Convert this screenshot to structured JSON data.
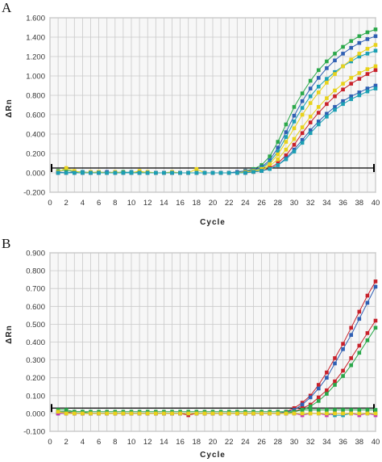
{
  "panels": [
    {
      "letter": "A",
      "chart_data": {
        "type": "line",
        "xlabel": "Cycle",
        "ylabel": "ΔRn",
        "xlim": [
          0,
          40
        ],
        "ylim": [
          -0.2,
          1.6
        ],
        "x_ticks": [
          "0",
          "2",
          "4",
          "6",
          "8",
          "10",
          "12",
          "14",
          "16",
          "18",
          "20",
          "22",
          "24",
          "26",
          "28",
          "30",
          "32",
          "34",
          "36",
          "38",
          "40"
        ],
        "y_ticks": [
          "-0.200",
          "0.000",
          "0.200",
          "0.400",
          "0.600",
          "0.800",
          "1.000",
          "1.200",
          "1.400",
          "1.600"
        ],
        "threshold": 0.05,
        "colors": {
          "green": "#2aa84a",
          "blue": "#2f5fb3",
          "teal": "#1b9fb3",
          "yellow": "#e8d21a",
          "red": "#c8202a",
          "grid": "#c9c9c9",
          "background": "#f7f7f7",
          "threshold": "#000000"
        },
        "x": [
          1,
          2,
          3,
          4,
          5,
          6,
          7,
          8,
          9,
          10,
          11,
          12,
          13,
          14,
          15,
          16,
          17,
          18,
          19,
          20,
          21,
          22,
          23,
          24,
          25,
          26,
          27,
          28,
          29,
          30,
          31,
          32,
          33,
          34,
          35,
          36,
          37,
          38,
          39,
          40
        ],
        "series": [
          {
            "color": "green",
            "values": [
              0.02,
              0.03,
              0.01,
              0.01,
              0.0,
              0.01,
              0.0,
              0.0,
              0.01,
              0.0,
              0.01,
              0.0,
              0.0,
              0.0,
              0.0,
              0.0,
              0.0,
              0.0,
              0.0,
              0.0,
              0.0,
              0.0,
              0.01,
              0.02,
              0.04,
              0.08,
              0.17,
              0.32,
              0.5,
              0.68,
              0.82,
              0.95,
              1.06,
              1.15,
              1.23,
              1.3,
              1.36,
              1.41,
              1.45,
              1.48
            ]
          },
          {
            "color": "blue",
            "values": [
              0.01,
              0.0,
              0.01,
              0.0,
              0.0,
              0.0,
              0.01,
              0.0,
              0.0,
              0.0,
              0.0,
              0.0,
              0.0,
              0.0,
              0.0,
              0.0,
              0.0,
              0.0,
              0.0,
              0.0,
              0.0,
              0.0,
              0.01,
              0.02,
              0.03,
              0.06,
              0.13,
              0.26,
              0.42,
              0.59,
              0.74,
              0.87,
              0.98,
              1.08,
              1.16,
              1.23,
              1.29,
              1.34,
              1.38,
              1.41
            ]
          },
          {
            "color": "teal",
            "values": [
              0.0,
              0.0,
              0.0,
              0.01,
              0.0,
              0.0,
              0.0,
              0.0,
              0.0,
              0.01,
              0.0,
              0.0,
              0.0,
              0.0,
              0.0,
              0.0,
              0.0,
              0.0,
              0.0,
              0.0,
              0.0,
              0.0,
              0.0,
              0.01,
              0.02,
              0.05,
              0.11,
              0.22,
              0.37,
              0.53,
              0.67,
              0.79,
              0.89,
              0.97,
              1.04,
              1.1,
              1.15,
              1.2,
              1.23,
              1.26
            ]
          },
          {
            "color": "yellow",
            "values": [
              0.01,
              0.05,
              0.02,
              0.0,
              0.0,
              0.01,
              0.0,
              0.01,
              0.0,
              0.0,
              0.02,
              0.0,
              0.0,
              0.0,
              0.01,
              0.0,
              0.0,
              0.04,
              0.0,
              0.0,
              0.0,
              0.0,
              0.0,
              0.01,
              0.02,
              0.04,
              0.09,
              0.19,
              0.32,
              0.46,
              0.6,
              0.72,
              0.83,
              0.93,
              1.02,
              1.1,
              1.17,
              1.23,
              1.28,
              1.32
            ]
          },
          {
            "color": "yellow",
            "values": [
              0.0,
              0.0,
              0.0,
              0.0,
              0.01,
              0.0,
              0.0,
              0.0,
              0.0,
              0.0,
              0.0,
              0.01,
              0.0,
              0.0,
              0.0,
              0.0,
              0.0,
              0.0,
              0.0,
              0.0,
              0.0,
              0.0,
              0.0,
              0.01,
              0.01,
              0.03,
              0.07,
              0.14,
              0.24,
              0.35,
              0.47,
              0.58,
              0.68,
              0.77,
              0.85,
              0.92,
              0.98,
              1.03,
              1.07,
              1.1
            ]
          },
          {
            "color": "red",
            "values": [
              0.0,
              0.0,
              0.0,
              0.0,
              0.0,
              0.0,
              0.0,
              0.0,
              0.0,
              0.0,
              0.0,
              0.0,
              0.0,
              0.0,
              0.0,
              0.0,
              0.0,
              0.0,
              0.0,
              0.0,
              0.0,
              0.0,
              0.0,
              0.0,
              0.01,
              0.02,
              0.05,
              0.1,
              0.18,
              0.29,
              0.41,
              0.52,
              0.62,
              0.71,
              0.79,
              0.86,
              0.92,
              0.97,
              1.02,
              1.06
            ]
          },
          {
            "color": "blue",
            "values": [
              0.0,
              0.0,
              0.0,
              0.0,
              0.0,
              0.0,
              0.0,
              0.0,
              0.0,
              0.0,
              0.0,
              0.0,
              0.0,
              0.0,
              0.0,
              0.0,
              0.0,
              0.0,
              0.0,
              0.0,
              0.0,
              0.0,
              0.0,
              0.0,
              0.01,
              0.02,
              0.04,
              0.08,
              0.15,
              0.24,
              0.34,
              0.44,
              0.53,
              0.61,
              0.68,
              0.74,
              0.79,
              0.83,
              0.87,
              0.9
            ]
          },
          {
            "color": "teal",
            "values": [
              0.0,
              0.0,
              0.0,
              0.0,
              0.0,
              0.0,
              0.0,
              0.0,
              0.0,
              0.0,
              0.0,
              0.0,
              0.0,
              0.0,
              0.0,
              0.0,
              0.0,
              0.0,
              0.0,
              0.0,
              0.0,
              0.0,
              0.0,
              0.0,
              0.01,
              0.02,
              0.04,
              0.08,
              0.14,
              0.22,
              0.31,
              0.41,
              0.5,
              0.58,
              0.65,
              0.71,
              0.76,
              0.8,
              0.84,
              0.87
            ]
          }
        ]
      }
    },
    {
      "letter": "B",
      "chart_data": {
        "type": "line",
        "xlabel": "Cycle",
        "ylabel": "ΔRn",
        "xlim": [
          0,
          40
        ],
        "ylim": [
          -0.1,
          0.9
        ],
        "x_ticks": [
          "0",
          "2",
          "4",
          "6",
          "8",
          "10",
          "12",
          "14",
          "16",
          "18",
          "20",
          "22",
          "24",
          "26",
          "28",
          "30",
          "32",
          "34",
          "36",
          "38",
          "40"
        ],
        "y_ticks": [
          "-0.100",
          "0.000",
          "0.100",
          "0.200",
          "0.300",
          "0.400",
          "0.500",
          "0.600",
          "0.700",
          "0.800",
          "0.900"
        ],
        "threshold": 0.03,
        "colors": {
          "green": "#2aa84a",
          "blue": "#2f5fb3",
          "teal": "#1b9fb3",
          "yellow": "#e8d21a",
          "red": "#c8202a",
          "magenta": "#c63ab0",
          "grid": "#c9c9c9",
          "background": "#f7f7f7",
          "threshold": "#000000"
        },
        "x": [
          1,
          2,
          3,
          4,
          5,
          6,
          7,
          8,
          9,
          10,
          11,
          12,
          13,
          14,
          15,
          16,
          17,
          18,
          19,
          20,
          21,
          22,
          23,
          24,
          25,
          26,
          27,
          28,
          29,
          30,
          31,
          32,
          33,
          34,
          35,
          36,
          37,
          38,
          39,
          40
        ],
        "series": [
          {
            "color": "red",
            "values": [
              0.01,
              0.01,
              0.0,
              0.0,
              0.0,
              0.0,
              0.0,
              0.0,
              0.0,
              0.0,
              0.0,
              0.0,
              0.0,
              0.0,
              0.0,
              0.0,
              -0.01,
              0.0,
              0.0,
              0.0,
              0.0,
              0.0,
              0.0,
              0.0,
              0.0,
              0.0,
              0.0,
              0.0,
              0.01,
              0.03,
              0.06,
              0.1,
              0.16,
              0.23,
              0.31,
              0.39,
              0.48,
              0.57,
              0.66,
              0.74
            ]
          },
          {
            "color": "blue",
            "values": [
              0.0,
              0.0,
              0.0,
              0.0,
              0.0,
              0.0,
              0.0,
              0.0,
              0.0,
              0.0,
              0.0,
              0.0,
              0.0,
              0.0,
              0.0,
              0.0,
              0.0,
              0.0,
              0.0,
              0.0,
              0.0,
              0.0,
              0.0,
              0.0,
              0.0,
              0.0,
              0.0,
              0.0,
              0.01,
              0.02,
              0.05,
              0.09,
              0.14,
              0.2,
              0.28,
              0.36,
              0.44,
              0.53,
              0.62,
              0.71
            ]
          },
          {
            "color": "red",
            "values": [
              0.0,
              0.0,
              0.0,
              0.0,
              0.0,
              0.0,
              0.0,
              0.0,
              0.0,
              0.0,
              0.0,
              0.0,
              0.0,
              0.0,
              0.0,
              0.0,
              0.0,
              0.0,
              0.0,
              0.0,
              0.0,
              0.0,
              0.0,
              0.0,
              0.0,
              0.0,
              0.0,
              0.0,
              0.0,
              0.01,
              0.03,
              0.05,
              0.09,
              0.13,
              0.18,
              0.24,
              0.31,
              0.38,
              0.45,
              0.52
            ]
          },
          {
            "color": "green",
            "values": [
              0.02,
              0.02,
              0.01,
              0.01,
              0.0,
              0.0,
              0.0,
              0.0,
              0.0,
              0.0,
              0.0,
              0.0,
              0.0,
              0.0,
              0.0,
              0.0,
              0.0,
              0.0,
              0.0,
              0.0,
              0.0,
              0.0,
              0.0,
              0.0,
              0.0,
              0.0,
              0.0,
              0.0,
              0.0,
              0.01,
              0.02,
              0.04,
              0.07,
              0.11,
              0.16,
              0.21,
              0.27,
              0.34,
              0.41,
              0.48
            ]
          },
          {
            "color": "green",
            "values": [
              0.01,
              0.01,
              0.01,
              0.01,
              0.01,
              0.01,
              0.01,
              0.01,
              0.01,
              0.01,
              0.01,
              0.01,
              0.01,
              0.01,
              0.01,
              0.01,
              0.01,
              0.01,
              0.01,
              0.01,
              0.01,
              0.01,
              0.01,
              0.01,
              0.01,
              0.01,
              0.01,
              0.01,
              0.01,
              0.01,
              0.02,
              0.02,
              0.02,
              0.02,
              0.02,
              0.02,
              0.02,
              0.02,
              0.02,
              0.02
            ]
          },
          {
            "color": "teal",
            "values": [
              0.0,
              0.0,
              0.0,
              0.0,
              0.0,
              0.0,
              0.0,
              0.0,
              0.0,
              0.0,
              0.0,
              0.0,
              0.0,
              0.0,
              0.0,
              0.0,
              0.0,
              0.0,
              0.0,
              0.0,
              0.0,
              0.0,
              0.0,
              0.0,
              0.0,
              0.0,
              0.0,
              0.0,
              0.0,
              0.0,
              0.0,
              0.0,
              0.0,
              0.0,
              -0.01,
              -0.01,
              0.0,
              0.0,
              0.0,
              0.0
            ]
          },
          {
            "color": "magenta",
            "values": [
              0.0,
              0.0,
              0.0,
              0.0,
              0.0,
              0.0,
              0.0,
              0.0,
              0.0,
              0.0,
              0.0,
              0.0,
              0.0,
              0.0,
              0.0,
              0.0,
              0.0,
              0.0,
              0.0,
              0.0,
              0.0,
              0.0,
              0.0,
              0.0,
              0.0,
              0.0,
              0.0,
              0.0,
              0.0,
              0.0,
              -0.01,
              0.0,
              0.0,
              -0.01,
              0.0,
              0.0,
              0.0,
              -0.01,
              0.0,
              -0.01
            ]
          },
          {
            "color": "yellow",
            "values": [
              0.01,
              0.0,
              0.0,
              0.0,
              0.0,
              0.0,
              0.0,
              0.0,
              0.0,
              0.0,
              0.0,
              0.0,
              0.0,
              0.0,
              0.0,
              0.0,
              0.0,
              0.0,
              0.0,
              0.0,
              0.0,
              0.0,
              0.0,
              0.0,
              0.0,
              0.0,
              0.0,
              0.0,
              0.0,
              0.0,
              0.0,
              0.0,
              0.0,
              0.0,
              0.0,
              0.0,
              0.0,
              0.0,
              0.0,
              0.0
            ]
          }
        ]
      }
    }
  ]
}
